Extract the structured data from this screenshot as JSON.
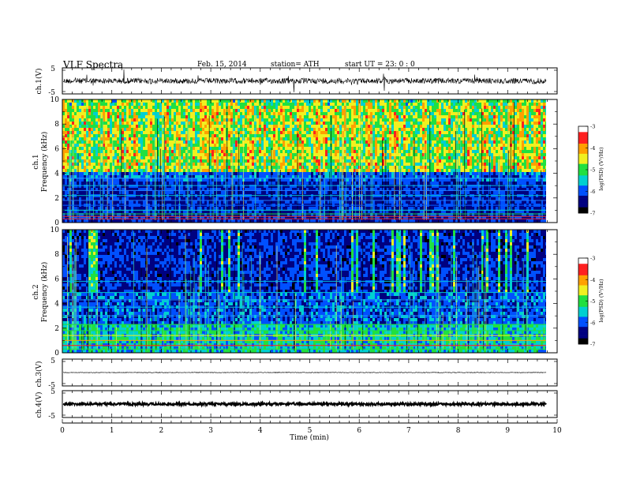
{
  "header": {
    "title": "VLF Spectra",
    "date": "Feb. 15, 2014",
    "station": "station= ATH",
    "start": "start  UT  =   23: 0  : 0"
  },
  "panels": {
    "ch1_wave": {
      "ylabel": "ch.1(V)",
      "tick_top": "5",
      "tick_bottom": "-5"
    },
    "ch1_spec": {
      "ylabel_ch": "ch.1",
      "ylabel": "Frequency  (kHz)"
    },
    "ch2_spec": {
      "ylabel_ch": "ch.2",
      "ylabel": "Frequency  (kHz)"
    },
    "ch3_wave": {
      "ylabel": "ch.3(V)",
      "tick_top": "5",
      "tick_bottom": "-5"
    },
    "ch4_wave": {
      "ylabel": "ch.4(V)",
      "tick_top": "5",
      "tick_bottom": "-5"
    }
  },
  "colorbar": {
    "label": "log(PSD) (V²/Hz)",
    "ticks": [
      "-3",
      "-4",
      "-5",
      "-6",
      "-7"
    ],
    "colors": [
      "#ffffff",
      "#ff2020",
      "#ffa000",
      "#f0f020",
      "#20e040",
      "#00d0d0",
      "#0050ff",
      "#000080",
      "#000000"
    ]
  },
  "chart_data": [
    {
      "type": "line",
      "name": "ch1-waveform",
      "ylabel": "ch.1(V)",
      "ylim": [
        -5,
        5
      ],
      "xlim": [
        0,
        10
      ],
      "xlabel": "Time  (min)",
      "note_duration_min": 9.8
    },
    {
      "type": "heatmap",
      "name": "ch1-spectrogram",
      "ylabel": "Frequency  (kHz)",
      "y_ticks": [
        "10",
        "8",
        "6",
        "4",
        "2",
        "0"
      ],
      "ylim": [
        0,
        10
      ],
      "xlim": [
        0,
        10
      ],
      "zlim": [
        -7,
        -3
      ]
    },
    {
      "type": "heatmap",
      "name": "ch2-spectrogram",
      "ylabel": "Frequency  (kHz)",
      "y_ticks": [
        "10",
        "8",
        "6",
        "4",
        "2",
        "0"
      ],
      "ylim": [
        0,
        10
      ],
      "xlim": [
        0,
        10
      ],
      "zlim": [
        -7,
        -3
      ]
    },
    {
      "type": "line",
      "name": "ch3-waveform",
      "ylabel": "ch.3(V)",
      "ylim": [
        -5,
        5
      ],
      "xlim": [
        0,
        10
      ]
    },
    {
      "type": "line",
      "name": "ch4-waveform",
      "ylabel": "ch.4(V)",
      "ylim": [
        -5,
        5
      ],
      "xlim": [
        0,
        10
      ]
    }
  ],
  "xaxis": {
    "label": "Time  (min)",
    "ticks": [
      "0",
      "1",
      "2",
      "3",
      "4",
      "5",
      "6",
      "7",
      "8",
      "9",
      "10"
    ]
  }
}
